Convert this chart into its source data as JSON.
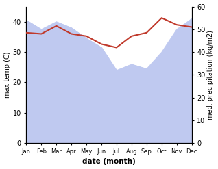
{
  "months": [
    "Jan",
    "Feb",
    "Mar",
    "Apr",
    "May",
    "Jun",
    "Jul",
    "Aug",
    "Sep",
    "Oct",
    "Nov",
    "Dec"
  ],
  "max_temp": [
    40.5,
    37.5,
    40.0,
    38.0,
    34.5,
    31.5,
    24.0,
    26.0,
    24.5,
    30.0,
    37.5,
    41.0
  ],
  "precipitation": [
    48.5,
    48.0,
    51.5,
    48.0,
    47.0,
    43.5,
    42.0,
    47.0,
    48.5,
    55.0,
    52.0,
    51.0
  ],
  "temp_color": "#c0392b",
  "precip_fill_color": "#bfc9f0",
  "temp_ylim": [
    0,
    45
  ],
  "precip_ylim": [
    0,
    60
  ],
  "temp_yticks": [
    0,
    10,
    20,
    30,
    40
  ],
  "precip_yticks": [
    0,
    10,
    20,
    30,
    40,
    50,
    60
  ],
  "xlabel": "date (month)",
  "ylabel_left": "max temp (C)",
  "ylabel_right": "med. precipitation (kg/m2)"
}
